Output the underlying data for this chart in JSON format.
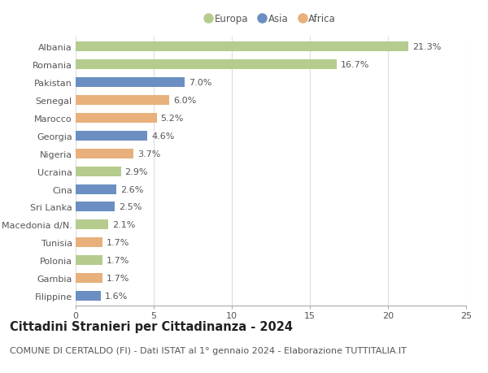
{
  "countries": [
    "Albania",
    "Romania",
    "Pakistan",
    "Senegal",
    "Marocco",
    "Georgia",
    "Nigeria",
    "Ucraina",
    "Cina",
    "Sri Lanka",
    "Macedonia d/N.",
    "Tunisia",
    "Polonia",
    "Gambia",
    "Filippine"
  ],
  "values": [
    21.3,
    16.7,
    7.0,
    6.0,
    5.2,
    4.6,
    3.7,
    2.9,
    2.6,
    2.5,
    2.1,
    1.7,
    1.7,
    1.7,
    1.6
  ],
  "continents": [
    "Europa",
    "Europa",
    "Asia",
    "Africa",
    "Africa",
    "Asia",
    "Africa",
    "Europa",
    "Asia",
    "Asia",
    "Europa",
    "Africa",
    "Europa",
    "Africa",
    "Asia"
  ],
  "colors": {
    "Europa": "#b5cc8e",
    "Asia": "#6b8fc2",
    "Africa": "#e8b07a"
  },
  "legend_order": [
    "Europa",
    "Asia",
    "Africa"
  ],
  "xlim": [
    0,
    25
  ],
  "xticks": [
    0,
    5,
    10,
    15,
    20,
    25
  ],
  "title": "Cittadini Stranieri per Cittadinanza - 2024",
  "subtitle": "COMUNE DI CERTALDO (FI) - Dati ISTAT al 1° gennaio 2024 - Elaborazione TUTTITALIA.IT",
  "title_fontsize": 10.5,
  "subtitle_fontsize": 8.0,
  "label_fontsize": 8.0,
  "tick_fontsize": 8.0,
  "legend_fontsize": 8.5,
  "bar_height": 0.55,
  "background_color": "#ffffff",
  "grid_color": "#dddddd"
}
